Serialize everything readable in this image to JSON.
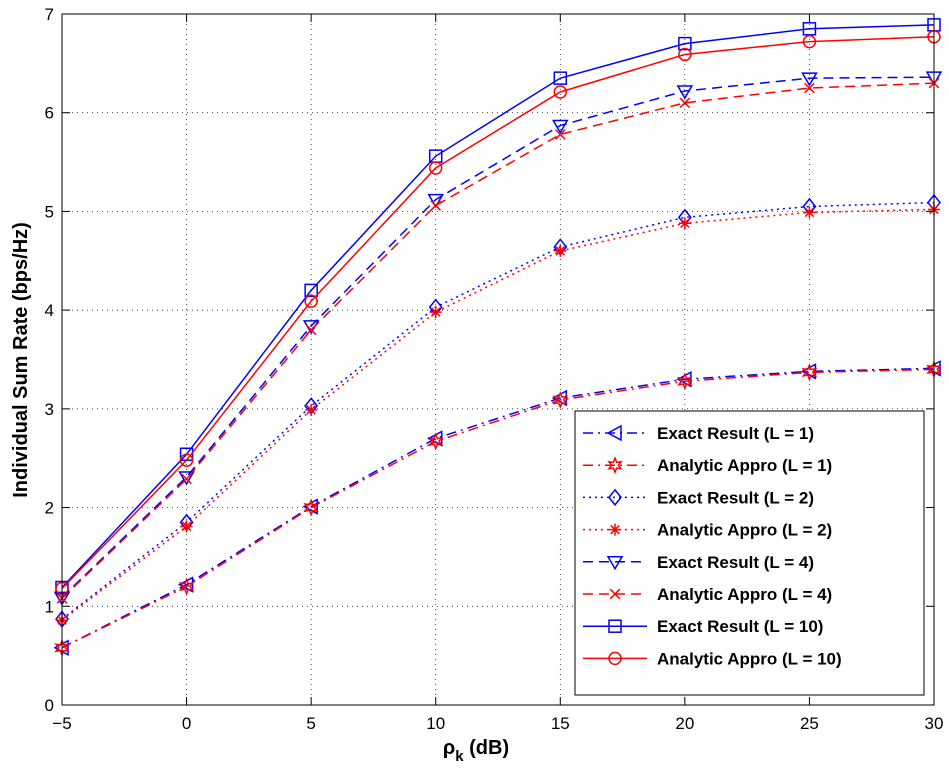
{
  "chart_data": {
    "type": "line",
    "xlabel": "ρk (dB)",
    "xlabel_main": "ρ",
    "xlabel_sub": "k",
    "xlabel_unit": " (dB)",
    "ylabel": "Individual Sum Rate (bps/Hz)",
    "xlim": [
      -5,
      30
    ],
    "ylim": [
      0,
      7
    ],
    "x_ticks": [
      -5,
      0,
      5,
      10,
      15,
      20,
      25,
      30
    ],
    "y_ticks": [
      0,
      1,
      2,
      3,
      4,
      5,
      6,
      7
    ],
    "x_tick_labels": [
      "−5",
      "0",
      "5",
      "10",
      "15",
      "20",
      "25",
      "30"
    ],
    "y_tick_labels": [
      "0",
      "1",
      "2",
      "3",
      "4",
      "5",
      "6",
      "7"
    ],
    "grid": true,
    "legend_position": "bottom-right",
    "x": [
      -5,
      0,
      5,
      10,
      15,
      20,
      25,
      30
    ],
    "series": [
      {
        "name": "Exact Result (L = 1)",
        "color": "#0000ff",
        "line_style": "dashdot",
        "marker": "triangle-left",
        "values": [
          0.58,
          1.22,
          2.01,
          2.7,
          3.11,
          3.3,
          3.38,
          3.41
        ]
      },
      {
        "name": "Analytic Appro (L = 1)",
        "color": "#ff0000",
        "line_style": "dashdot",
        "marker": "hexagram",
        "values": [
          0.58,
          1.2,
          2.0,
          2.67,
          3.09,
          3.28,
          3.37,
          3.4
        ]
      },
      {
        "name": "Exact Result (L = 2)",
        "color": "#0000ff",
        "line_style": "dotted",
        "marker": "diamond",
        "values": [
          0.87,
          1.85,
          3.03,
          4.03,
          4.64,
          4.94,
          5.05,
          5.09
        ]
      },
      {
        "name": "Analytic Appro (L = 2)",
        "color": "#ff0000",
        "line_style": "dotted",
        "marker": "asterisk",
        "values": [
          0.86,
          1.81,
          2.99,
          3.98,
          4.6,
          4.88,
          4.99,
          5.02
        ]
      },
      {
        "name": "Exact Result (L = 4)",
        "color": "#0000ff",
        "line_style": "dashed",
        "marker": "triangle-down",
        "values": [
          1.09,
          2.31,
          3.84,
          5.12,
          5.87,
          6.22,
          6.35,
          6.36
        ]
      },
      {
        "name": "Analytic Appro (L = 4)",
        "color": "#ff0000",
        "line_style": "dashed",
        "marker": "x",
        "values": [
          1.08,
          2.29,
          3.8,
          5.06,
          5.78,
          6.1,
          6.25,
          6.3
        ]
      },
      {
        "name": "Exact Result (L = 10)",
        "color": "#0000ff",
        "line_style": "solid",
        "marker": "square",
        "values": [
          1.19,
          2.54,
          4.2,
          5.56,
          6.35,
          6.7,
          6.85,
          6.89
        ]
      },
      {
        "name": "Analytic Appro (L = 10)",
        "color": "#ff0000",
        "line_style": "solid",
        "marker": "circle",
        "values": [
          1.18,
          2.48,
          4.09,
          5.44,
          6.21,
          6.59,
          6.72,
          6.77
        ]
      }
    ]
  }
}
